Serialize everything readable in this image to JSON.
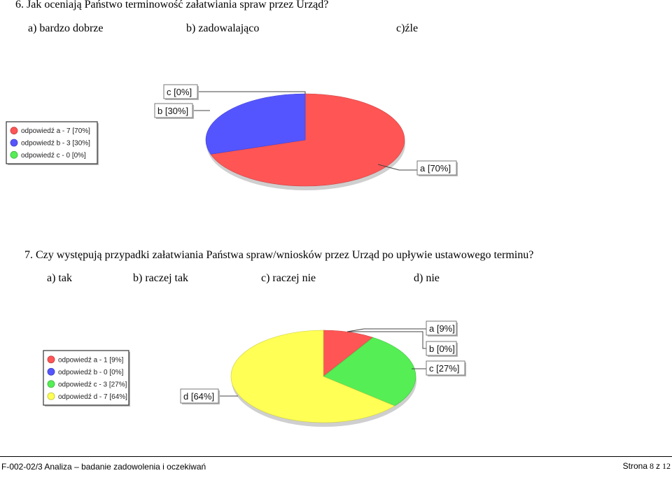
{
  "q6": {
    "title": "6. Jak oceniają Państwo terminowość załatwiania spraw przez Urząd?",
    "options": [
      "a) bardzo dobrze",
      "b) zadowalająco",
      "c)źle"
    ]
  },
  "q7": {
    "title": "7. Czy występują przypadki załatwiania Państwa spraw/wniosków przez Urząd po upływie ustawowego terminu?",
    "options": [
      "a) tak",
      "b) raczej tak",
      "c) raczej nie",
      "d) nie"
    ]
  },
  "chart_data": [
    {
      "type": "pie",
      "categories": [
        "a",
        "b",
        "c"
      ],
      "values": [
        70,
        30,
        0
      ],
      "slice_labels": [
        "a [70%]",
        "b [30%]",
        "c [0%]"
      ],
      "legend": [
        "odpowiedź a - 7 [70%]",
        "odpowiedź b - 3 [30%]",
        "odpowiedź c - 0 [0%]"
      ],
      "colors": [
        "#ff5555",
        "#5555ff",
        "#55ee55"
      ],
      "legend_position": "left"
    },
    {
      "type": "pie",
      "categories": [
        "a",
        "b",
        "c",
        "d"
      ],
      "values": [
        9,
        0,
        27,
        64
      ],
      "slice_labels": [
        "a [9%]",
        "b [0%]",
        "c [27%]",
        "d [64%]"
      ],
      "legend": [
        "odpowiedź a - 1 [9%]",
        "odpowiedź b - 0 [0%]",
        "odpowiedź c - 3 [27%]",
        "odpowiedź d - 7 [64%]"
      ],
      "colors": [
        "#ff5555",
        "#5555ff",
        "#55ee55",
        "#ffff55"
      ],
      "legend_position": "left"
    }
  ],
  "footer": {
    "left": "F-002-02/3 Analiza – badanie zadowolenia i oczekiwań",
    "page_prefix": "Strona",
    "page_current": "8",
    "page_sep": "z",
    "page_total": "12"
  }
}
